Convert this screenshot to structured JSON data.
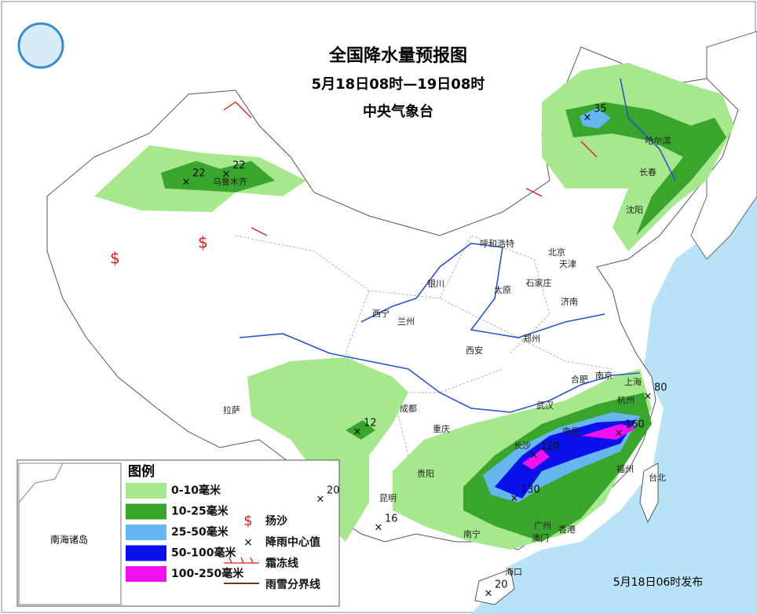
{
  "header": {
    "title": "全国降水量预报图",
    "period": "5月18日08时—19日08时",
    "agency": "中央气象台"
  },
  "legend": {
    "title": "图例",
    "items": [
      {
        "label": "0-10毫米",
        "color": "#a7e88f"
      },
      {
        "label": "10-25毫米",
        "color": "#3aa52c"
      },
      {
        "label": "25-50毫米",
        "color": "#66b6f2"
      },
      {
        "label": "50-100毫米",
        "color": "#0a10e8"
      },
      {
        "label": "100-250毫米",
        "color": "#f010f0"
      }
    ],
    "symbols": [
      "扬沙",
      "降雨中心值",
      "霜冻线",
      "雨雪分界线"
    ]
  },
  "centers": [
    22,
    22,
    35,
    80,
    160,
    120,
    130,
    20,
    12,
    16,
    20
  ],
  "cities": [
    "乌鲁木齐",
    "哈尔滨",
    "长春",
    "沈阳",
    "呼和浩特",
    "北京",
    "天津",
    "石家庄",
    "太原",
    "济南",
    "银川",
    "西宁",
    "兰州",
    "西安",
    "郑州",
    "合肥",
    "南京",
    "上海",
    "杭州",
    "武汉",
    "南昌",
    "长沙",
    "福州",
    "台北",
    "成都",
    "重庆",
    "贵阳",
    "昆明",
    "拉萨",
    "南宁",
    "广州",
    "香港",
    "澳门",
    "海口"
  ],
  "inset": "南海诸岛",
  "issued": "5月18日06时发布"
}
